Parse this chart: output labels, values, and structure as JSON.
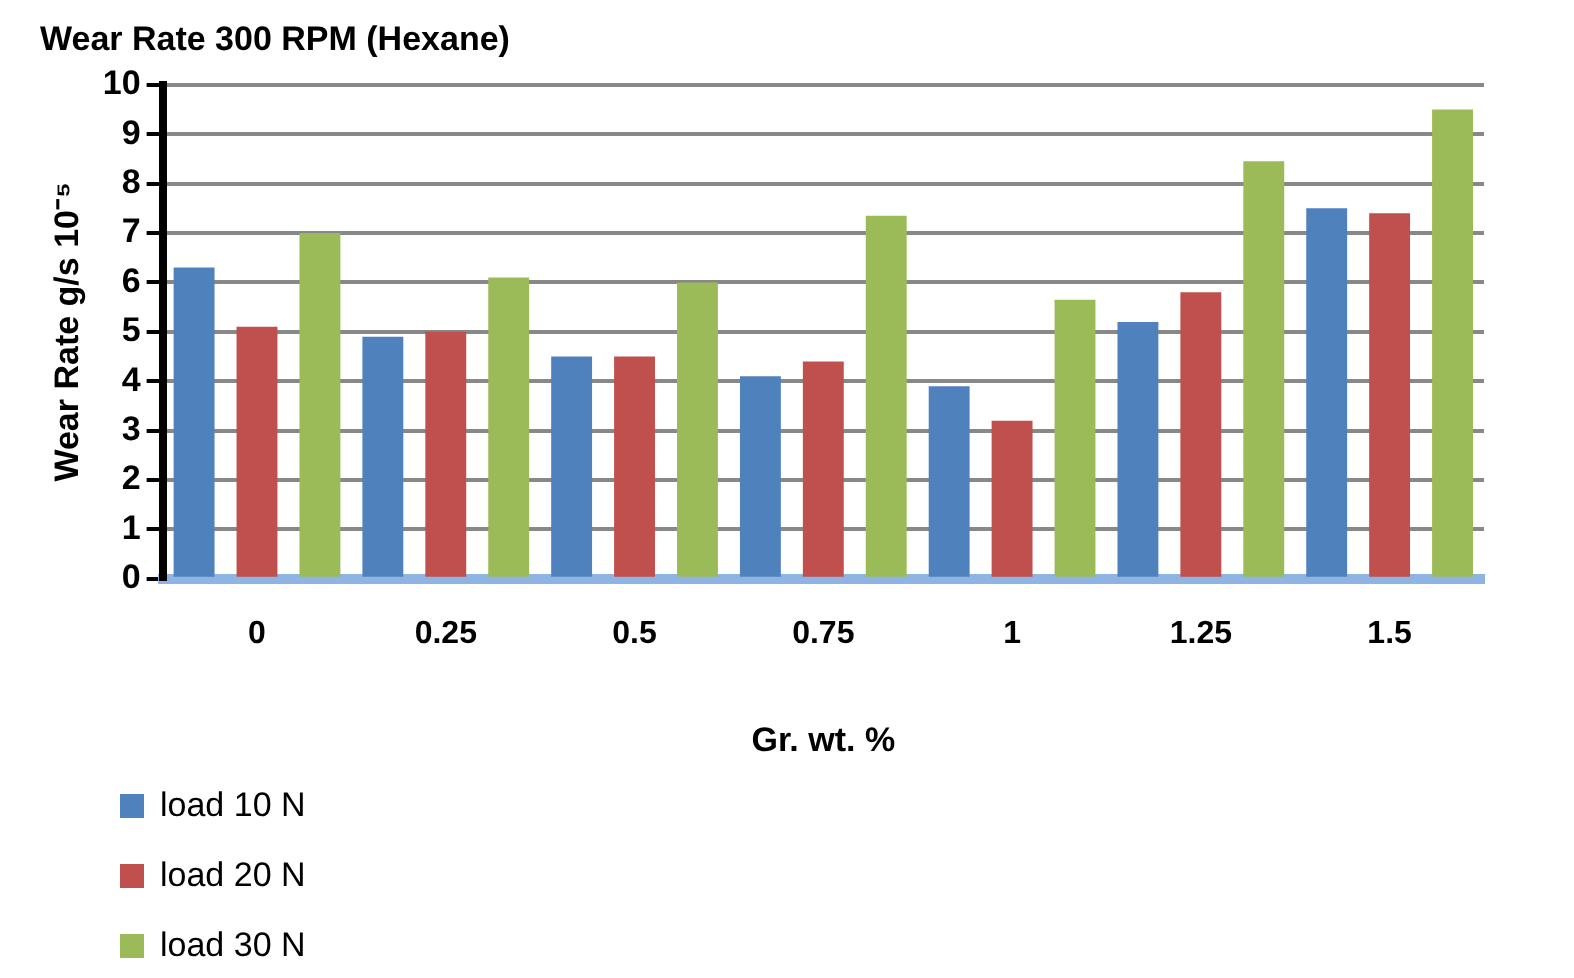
{
  "chart_data": {
    "type": "bar",
    "title": "Wear Rate 300 RPM (Hexane)",
    "xlabel": "Gr. wt. %",
    "ylabel": "Wear Rate g/s 10⁻⁵",
    "categories": [
      "0",
      "0.25",
      "0.5",
      "0.75",
      "1",
      "1.25",
      "1.5"
    ],
    "series": [
      {
        "name": "load 10 N",
        "color": "#4f81bd",
        "values": [
          6.3,
          4.9,
          4.5,
          4.1,
          3.9,
          5.2,
          7.5
        ]
      },
      {
        "name": "load 20 N",
        "color": "#c0504d",
        "values": [
          5.1,
          5.0,
          4.5,
          4.4,
          3.2,
          5.8,
          7.4
        ]
      },
      {
        "name": "load 30 N",
        "color": "#9bbb59",
        "values": [
          7.0,
          6.1,
          6.0,
          7.35,
          5.65,
          8.45,
          9.5
        ]
      }
    ],
    "ylim": [
      0,
      10
    ],
    "yticks": [
      0,
      1,
      2,
      3,
      4,
      5,
      6,
      7,
      8,
      9,
      10
    ],
    "grid": "y",
    "legend": "bottom left"
  }
}
